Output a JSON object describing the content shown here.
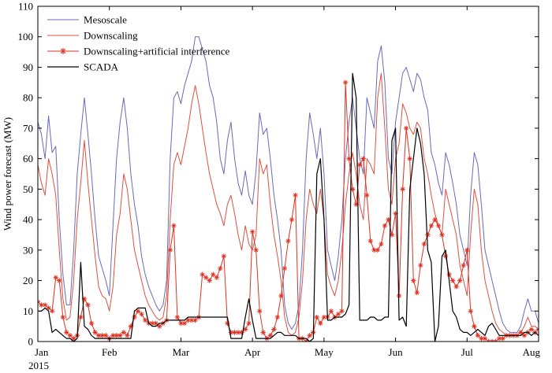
{
  "chart_data": {
    "type": "line",
    "ylabel": "Wind  power  forecast  (MW)",
    "xlabel": "",
    "ylim": [
      0,
      110
    ],
    "xlim": [
      0,
      7
    ],
    "yticks": [
      0,
      10,
      20,
      30,
      40,
      50,
      60,
      70,
      80,
      90,
      100,
      110
    ],
    "xticks": [
      {
        "pos": 0,
        "label": "Jan"
      },
      {
        "pos": 1,
        "label": "Feb"
      },
      {
        "pos": 2,
        "label": "Mar"
      },
      {
        "pos": 3,
        "label": "Apr"
      },
      {
        "pos": 4,
        "label": "May"
      },
      {
        "pos": 5,
        "label": "Jun"
      },
      {
        "pos": 6,
        "label": "Jul"
      },
      {
        "pos": 7,
        "label": "Aug"
      }
    ],
    "year_label": "2015",
    "legend_position": "top-left",
    "series": [
      {
        "name": "Mesoscale",
        "color": "#6a6ab8",
        "marker": "none",
        "x": [
          0,
          0.05,
          0.1,
          0.15,
          0.2,
          0.25,
          0.3,
          0.35,
          0.4,
          0.45,
          0.5,
          0.55,
          0.6,
          0.65,
          0.7,
          0.75,
          0.8,
          0.85,
          0.9,
          0.95,
          1.0,
          1.05,
          1.1,
          1.15,
          1.2,
          1.25,
          1.3,
          1.35,
          1.4,
          1.45,
          1.5,
          1.55,
          1.6,
          1.65,
          1.7,
          1.75,
          1.8,
          1.85,
          1.9,
          1.95,
          2.0,
          2.05,
          2.1,
          2.15,
          2.2,
          2.25,
          2.3,
          2.35,
          2.4,
          2.45,
          2.5,
          2.55,
          2.6,
          2.65,
          2.7,
          2.75,
          2.8,
          2.85,
          2.9,
          2.95,
          3.0,
          3.05,
          3.1,
          3.15,
          3.2,
          3.25,
          3.3,
          3.35,
          3.4,
          3.45,
          3.5,
          3.55,
          3.6,
          3.65,
          3.7,
          3.75,
          3.8,
          3.85,
          3.9,
          3.95,
          4.0,
          4.05,
          4.1,
          4.15,
          4.2,
          4.25,
          4.3,
          4.35,
          4.4,
          4.45,
          4.5,
          4.55,
          4.6,
          4.65,
          4.7,
          4.75,
          4.8,
          4.85,
          4.9,
          4.95,
          5.0,
          5.05,
          5.1,
          5.15,
          5.2,
          5.25,
          5.3,
          5.35,
          5.4,
          5.45,
          5.5,
          5.55,
          5.6,
          5.65,
          5.7,
          5.75,
          5.8,
          5.85,
          5.9,
          5.95,
          6.0,
          6.05,
          6.1,
          6.15,
          6.2,
          6.25,
          6.3,
          6.35,
          6.4,
          6.45,
          6.5,
          6.55,
          6.6,
          6.65,
          6.7,
          6.75,
          6.8,
          6.85,
          6.9,
          6.95,
          7.0
        ],
        "values": [
          72,
          68,
          60,
          74,
          62,
          64,
          40,
          22,
          12,
          12,
          30,
          55,
          68,
          80,
          68,
          55,
          40,
          28,
          24,
          20,
          15,
          38,
          60,
          72,
          80,
          70,
          55,
          45,
          38,
          28,
          22,
          18,
          15,
          12,
          10,
          12,
          20,
          60,
          80,
          82,
          78,
          84,
          88,
          92,
          100,
          100,
          96,
          92,
          84,
          80,
          72,
          60,
          55,
          66,
          72,
          60,
          52,
          48,
          56,
          48,
          45,
          56,
          75,
          68,
          70,
          60,
          48,
          40,
          30,
          12,
          6,
          4,
          6,
          12,
          30,
          60,
          75,
          68,
          60,
          70,
          55,
          30,
          25,
          20,
          28,
          40,
          60,
          72,
          80,
          70,
          60,
          55,
          80,
          75,
          70,
          92,
          97,
          85,
          60,
          55,
          72,
          80,
          88,
          90,
          86,
          82,
          88,
          86,
          80,
          76,
          62,
          58,
          52,
          48,
          62,
          58,
          52,
          45,
          35,
          30,
          25,
          48,
          62,
          58,
          45,
          30,
          25,
          20,
          15,
          10,
          6,
          4,
          3,
          3,
          3,
          5,
          10,
          14,
          10,
          10,
          6
        ]
      },
      {
        "name": "Downscaling",
        "color": "#e05040",
        "marker": "none",
        "x": [
          0,
          0.05,
          0.1,
          0.15,
          0.2,
          0.25,
          0.3,
          0.35,
          0.4,
          0.45,
          0.5,
          0.55,
          0.6,
          0.65,
          0.7,
          0.75,
          0.8,
          0.85,
          0.9,
          0.95,
          1.0,
          1.05,
          1.1,
          1.15,
          1.2,
          1.25,
          1.3,
          1.35,
          1.4,
          1.45,
          1.5,
          1.55,
          1.6,
          1.65,
          1.7,
          1.75,
          1.8,
          1.85,
          1.9,
          1.95,
          2.0,
          2.05,
          2.1,
          2.15,
          2.2,
          2.25,
          2.3,
          2.35,
          2.4,
          2.45,
          2.5,
          2.55,
          2.6,
          2.65,
          2.7,
          2.75,
          2.8,
          2.85,
          2.9,
          2.95,
          3.0,
          3.05,
          3.1,
          3.15,
          3.2,
          3.25,
          3.3,
          3.35,
          3.4,
          3.45,
          3.5,
          3.55,
          3.6,
          3.65,
          3.7,
          3.75,
          3.8,
          3.85,
          3.9,
          3.95,
          4.0,
          4.05,
          4.1,
          4.15,
          4.2,
          4.25,
          4.3,
          4.35,
          4.4,
          4.45,
          4.5,
          4.55,
          4.6,
          4.65,
          4.7,
          4.75,
          4.8,
          4.85,
          4.9,
          4.95,
          5.0,
          5.05,
          5.1,
          5.15,
          5.2,
          5.25,
          5.3,
          5.35,
          5.4,
          5.45,
          5.5,
          5.55,
          5.6,
          5.65,
          5.7,
          5.75,
          5.8,
          5.85,
          5.9,
          5.95,
          6.0,
          6.05,
          6.1,
          6.15,
          6.2,
          6.25,
          6.3,
          6.35,
          6.4,
          6.45,
          6.5,
          6.55,
          6.6,
          6.65,
          6.7,
          6.75,
          6.8,
          6.85,
          6.9,
          6.95,
          7.0
        ],
        "values": [
          58,
          52,
          48,
          60,
          55,
          48,
          30,
          14,
          7,
          8,
          20,
          40,
          52,
          66,
          52,
          40,
          28,
          18,
          15,
          14,
          10,
          18,
          35,
          42,
          55,
          50,
          40,
          30,
          25,
          20,
          15,
          12,
          10,
          8,
          7,
          8,
          15,
          40,
          58,
          62,
          58,
          64,
          70,
          78,
          84,
          78,
          70,
          62,
          55,
          50,
          45,
          42,
          38,
          45,
          48,
          42,
          35,
          30,
          38,
          32,
          30,
          35,
          60,
          55,
          58,
          45,
          35,
          28,
          20,
          8,
          3,
          2,
          3,
          8,
          20,
          40,
          50,
          45,
          42,
          50,
          40,
          22,
          18,
          15,
          20,
          30,
          45,
          55,
          62,
          55,
          45,
          40,
          60,
          58,
          55,
          80,
          88,
          70,
          50,
          45,
          60,
          65,
          78,
          75,
          70,
          68,
          72,
          70,
          60,
          55,
          48,
          42,
          38,
          35,
          50,
          45,
          40,
          35,
          25,
          20,
          15,
          35,
          50,
          45,
          30,
          20,
          15,
          10,
          6,
          4,
          3,
          2,
          2,
          2,
          2,
          3,
          5,
          8,
          5,
          5,
          4
        ]
      },
      {
        "name": "Downscaling+artificial  interference",
        "color": "#e03020",
        "marker": "star",
        "x": [
          0,
          0.05,
          0.1,
          0.15,
          0.2,
          0.25,
          0.3,
          0.35,
          0.4,
          0.45,
          0.5,
          0.55,
          0.6,
          0.65,
          0.7,
          0.75,
          0.8,
          0.85,
          0.9,
          0.95,
          1.0,
          1.05,
          1.1,
          1.15,
          1.2,
          1.25,
          1.3,
          1.35,
          1.4,
          1.45,
          1.5,
          1.55,
          1.6,
          1.65,
          1.7,
          1.75,
          1.8,
          1.85,
          1.9,
          1.95,
          2.0,
          2.05,
          2.1,
          2.15,
          2.2,
          2.25,
          2.3,
          2.35,
          2.4,
          2.45,
          2.5,
          2.55,
          2.6,
          2.65,
          2.7,
          2.75,
          2.8,
          2.85,
          2.9,
          2.95,
          3.0,
          3.05,
          3.1,
          3.15,
          3.2,
          3.25,
          3.3,
          3.35,
          3.4,
          3.45,
          3.5,
          3.55,
          3.6,
          3.65,
          3.7,
          3.75,
          3.8,
          3.85,
          3.9,
          3.95,
          4.0,
          4.05,
          4.1,
          4.15,
          4.2,
          4.25,
          4.3,
          4.35,
          4.4,
          4.45,
          4.5,
          4.55,
          4.6,
          4.65,
          4.7,
          4.75,
          4.8,
          4.85,
          4.9,
          4.95,
          5.0,
          5.05,
          5.1,
          5.15,
          5.2,
          5.25,
          5.3,
          5.35,
          5.4,
          5.45,
          5.5,
          5.55,
          5.6,
          5.65,
          5.7,
          5.75,
          5.8,
          5.85,
          5.9,
          5.95,
          6.0,
          6.05,
          6.1,
          6.15,
          6.2,
          6.25,
          6.3,
          6.35,
          6.4,
          6.45,
          6.5,
          6.55,
          6.6,
          6.65,
          6.7,
          6.75,
          6.8,
          6.85,
          6.9,
          6.95,
          7.0
        ],
        "values": [
          13,
          12,
          12,
          11,
          10,
          21,
          20,
          8,
          3,
          2,
          1,
          2,
          8,
          14,
          12,
          6,
          3,
          2,
          2,
          2,
          1,
          2,
          2,
          2,
          3,
          2,
          5,
          8,
          10,
          9,
          7,
          6,
          6,
          6,
          5,
          6,
          7,
          30,
          38,
          8,
          6,
          6,
          7,
          7,
          7,
          8,
          22,
          21,
          20,
          22,
          21,
          24,
          28,
          6,
          3,
          3,
          3,
          3,
          4,
          6,
          36,
          30,
          10,
          3,
          1,
          2,
          4,
          8,
          15,
          24,
          33,
          40,
          48,
          1,
          1,
          0,
          2,
          3,
          8,
          6,
          8,
          8,
          10,
          8,
          9,
          10,
          85,
          60,
          50,
          45,
          58,
          60,
          48,
          33,
          30,
          30,
          32,
          38,
          40,
          35,
          42,
          15,
          50,
          70,
          60,
          20,
          16,
          25,
          32,
          35,
          38,
          40,
          38,
          35,
          28,
          22,
          20,
          18,
          20,
          25,
          30,
          10,
          5,
          2,
          1,
          1,
          0,
          0,
          0,
          1,
          1,
          2,
          2,
          2,
          2,
          3,
          2,
          3,
          4,
          3,
          4
        ]
      },
      {
        "name": "SCADA",
        "color": "#000000",
        "marker": "none",
        "x": [
          0,
          0.05,
          0.1,
          0.15,
          0.2,
          0.25,
          0.3,
          0.35,
          0.4,
          0.45,
          0.5,
          0.55,
          0.6,
          0.65,
          0.7,
          0.75,
          0.8,
          0.85,
          0.9,
          0.95,
          1.0,
          1.05,
          1.1,
          1.15,
          1.2,
          1.25,
          1.3,
          1.35,
          1.4,
          1.45,
          1.5,
          1.55,
          1.6,
          1.65,
          1.7,
          1.75,
          1.8,
          1.85,
          1.9,
          1.95,
          2.0,
          2.05,
          2.1,
          2.15,
          2.2,
          2.25,
          2.3,
          2.35,
          2.4,
          2.45,
          2.5,
          2.55,
          2.6,
          2.65,
          2.7,
          2.75,
          2.8,
          2.85,
          2.9,
          2.95,
          3.0,
          3.05,
          3.1,
          3.15,
          3.2,
          3.25,
          3.3,
          3.35,
          3.4,
          3.45,
          3.5,
          3.55,
          3.6,
          3.65,
          3.7,
          3.75,
          3.8,
          3.85,
          3.9,
          3.95,
          4.0,
          4.05,
          4.1,
          4.15,
          4.2,
          4.25,
          4.3,
          4.35,
          4.4,
          4.45,
          4.5,
          4.55,
          4.6,
          4.65,
          4.7,
          4.75,
          4.8,
          4.85,
          4.9,
          4.95,
          5.0,
          5.05,
          5.1,
          5.15,
          5.2,
          5.25,
          5.3,
          5.35,
          5.4,
          5.45,
          5.5,
          5.55,
          5.6,
          5.65,
          5.7,
          5.75,
          5.8,
          5.85,
          5.9,
          5.95,
          6.0,
          6.05,
          6.1,
          6.15,
          6.2,
          6.25,
          6.3,
          6.35,
          6.4,
          6.45,
          6.5,
          6.55,
          6.6,
          6.65,
          6.7,
          6.75,
          6.8,
          6.85,
          6.9,
          6.95,
          7.0
        ],
        "values": [
          10,
          10,
          11,
          10,
          3,
          4,
          3,
          2,
          1,
          1,
          0,
          1,
          26,
          5,
          4,
          2,
          1,
          1,
          1,
          1,
          1,
          1,
          1,
          1,
          1,
          1,
          1,
          10,
          11,
          11,
          11,
          6,
          5,
          5,
          6,
          6,
          7,
          7,
          7,
          7,
          7,
          7,
          8,
          8,
          8,
          8,
          8,
          8,
          8,
          8,
          8,
          8,
          8,
          8,
          1,
          1,
          1,
          1,
          8,
          14,
          7,
          1,
          1,
          1,
          1,
          1,
          2,
          3,
          3,
          2,
          2,
          2,
          2,
          1,
          1,
          1,
          0,
          1,
          55,
          60,
          40,
          7,
          7,
          8,
          8,
          8,
          9,
          12,
          88,
          80,
          7,
          7,
          7,
          8,
          8,
          7,
          7,
          8,
          8,
          66,
          70,
          7,
          8,
          5,
          50,
          60,
          70,
          65,
          55,
          30,
          26,
          0,
          5,
          28,
          30,
          20,
          10,
          8,
          4,
          3,
          3,
          2,
          3,
          4,
          3,
          2,
          5,
          6,
          4,
          2,
          2,
          2,
          2,
          2,
          2,
          2,
          3,
          3,
          2,
          3,
          2
        ]
      }
    ]
  }
}
